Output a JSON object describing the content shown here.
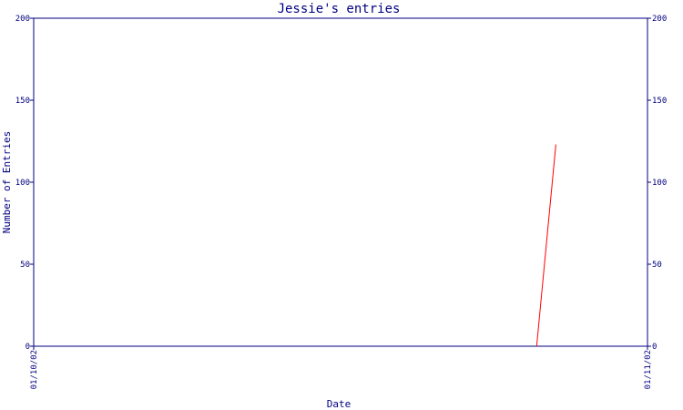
{
  "chart_data": {
    "type": "line",
    "title": "Jessie's entries",
    "xlabel": "Date",
    "ylabel": "Number of Entries",
    "x_ticks": [
      "01/10/02",
      "01/11/02"
    ],
    "y_ticks": [
      0,
      50,
      100,
      150,
      200
    ],
    "ylim": [
      0,
      200
    ],
    "xlim": [
      "01/10/02",
      "01/11/02"
    ],
    "series": [
      {
        "color": "#ff0000",
        "points": [
          {
            "x": "01/10/02 19:40",
            "y": 0
          },
          {
            "x": "01/10/02 20:25",
            "y": 123
          }
        ]
      }
    ],
    "colors": {
      "axis": "#000080",
      "series": "#ff0000",
      "background": "#ffffff"
    },
    "grid": false,
    "mirror_y_axis_right": true
  }
}
